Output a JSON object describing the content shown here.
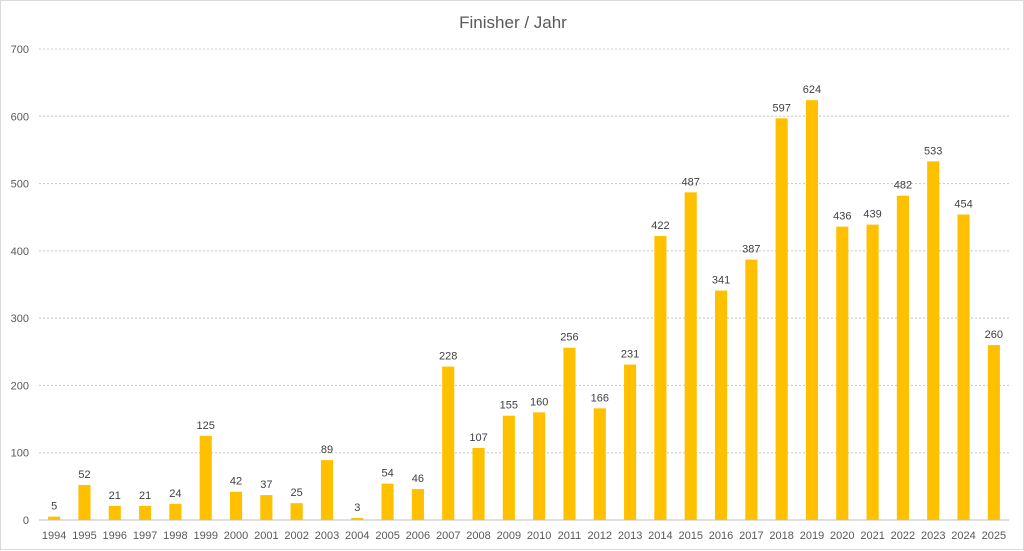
{
  "chart_data": {
    "type": "bar",
    "title": "Finisher / Jahr",
    "xlabel": "",
    "ylabel": "",
    "ylim": [
      0,
      700
    ],
    "yticks": [
      0,
      100,
      200,
      300,
      400,
      500,
      600,
      700
    ],
    "grid": true,
    "legend": "none",
    "bar_color": "#FFC000",
    "categories": [
      "1994",
      "1995",
      "1996",
      "1997",
      "1998",
      "1999",
      "2000",
      "2001",
      "2002",
      "2003",
      "2004",
      "2005",
      "2006",
      "2007",
      "2008",
      "2009",
      "2010",
      "2011",
      "2012",
      "2013",
      "2014",
      "2015",
      "2016",
      "2017",
      "2018",
      "2019",
      "2020",
      "2021",
      "2022",
      "2023",
      "2024",
      "2025"
    ],
    "values": [
      5,
      52,
      21,
      21,
      24,
      125,
      42,
      37,
      25,
      89,
      3,
      54,
      46,
      228,
      107,
      155,
      160,
      256,
      166,
      231,
      422,
      487,
      341,
      387,
      597,
      624,
      436,
      439,
      482,
      533,
      454,
      260
    ]
  }
}
